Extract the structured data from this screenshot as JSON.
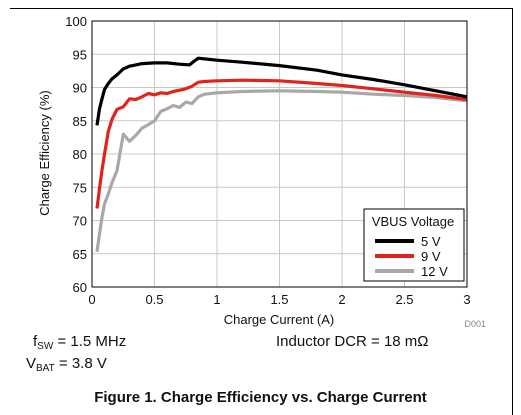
{
  "chart_data": {
    "type": "line",
    "title": "",
    "xlabel": "Charge Current (A)",
    "ylabel": "Charge Efficiency (%)",
    "xlim": [
      0,
      3
    ],
    "ylim": [
      60,
      100
    ],
    "x_ticks": [
      0,
      0.5,
      1,
      1.5,
      2,
      2.5,
      3
    ],
    "x_tick_labels": [
      "0",
      "0.5",
      "1",
      "1.5",
      "2",
      "2.5",
      "3"
    ],
    "y_ticks": [
      60,
      65,
      70,
      75,
      80,
      85,
      90,
      95,
      100
    ],
    "y_tick_labels": [
      "60",
      "65",
      "70",
      "75",
      "80",
      "85",
      "90",
      "95",
      "100"
    ],
    "grid": true,
    "legend_title": "VBUS Voltage",
    "legend_position": "lower-right",
    "figure_id": "D001",
    "series": [
      {
        "name": "5 V",
        "color": "#000000",
        "x": [
          0.04,
          0.06,
          0.08,
          0.1,
          0.13,
          0.16,
          0.2,
          0.25,
          0.3,
          0.35,
          0.4,
          0.5,
          0.6,
          0.7,
          0.78,
          0.82,
          0.85,
          0.9,
          1.0,
          1.2,
          1.5,
          1.8,
          2.0,
          2.25,
          2.5,
          2.75,
          3.0
        ],
        "y": [
          84.3,
          86.8,
          88.3,
          89.7,
          90.6,
          91.3,
          91.9,
          92.8,
          93.2,
          93.4,
          93.6,
          93.7,
          93.7,
          93.5,
          93.4,
          94.0,
          94.4,
          94.3,
          94.1,
          93.8,
          93.3,
          92.6,
          91.9,
          91.2,
          90.4,
          89.5,
          88.6
        ]
      },
      {
        "name": "9 V",
        "color": "#e2231a",
        "x": [
          0.04,
          0.06,
          0.08,
          0.1,
          0.13,
          0.16,
          0.2,
          0.25,
          0.3,
          0.35,
          0.4,
          0.45,
          0.5,
          0.55,
          0.6,
          0.65,
          0.7,
          0.75,
          0.8,
          0.85,
          0.9,
          1.0,
          1.2,
          1.5,
          1.8,
          2.0,
          2.25,
          2.5,
          2.75,
          3.0
        ],
        "y": [
          71.8,
          74.8,
          77.6,
          80.0,
          83.4,
          85.2,
          86.7,
          87.1,
          88.3,
          88.2,
          88.6,
          89.1,
          88.9,
          89.2,
          89.1,
          89.4,
          89.6,
          89.8,
          90.2,
          90.8,
          90.9,
          91.0,
          91.1,
          91.0,
          90.6,
          90.3,
          89.8,
          89.3,
          88.8,
          88.2
        ]
      },
      {
        "name": "12 V",
        "color": "#a8a8a8",
        "x": [
          0.04,
          0.06,
          0.08,
          0.1,
          0.13,
          0.16,
          0.2,
          0.25,
          0.3,
          0.35,
          0.4,
          0.45,
          0.5,
          0.55,
          0.6,
          0.65,
          0.7,
          0.75,
          0.8,
          0.85,
          0.9,
          1.0,
          1.2,
          1.5,
          1.8,
          2.0,
          2.25,
          2.5,
          2.75,
          3.0
        ],
        "y": [
          65.3,
          68.0,
          70.5,
          72.5,
          74.0,
          75.7,
          77.5,
          83.0,
          81.9,
          82.8,
          83.9,
          84.4,
          85.0,
          86.4,
          86.8,
          87.3,
          87.0,
          87.8,
          87.6,
          88.6,
          89.0,
          89.2,
          89.4,
          89.5,
          89.4,
          89.3,
          89.0,
          88.8,
          88.5,
          88.0
        ]
      }
    ]
  },
  "annotations": {
    "fsw_main": "f",
    "fsw_sub": "SW",
    "fsw_value": " = 1.5 MHz",
    "vbat_main": "V",
    "vbat_sub": "BAT",
    "vbat_value": " = 3.8 V",
    "dcr": "Inductor DCR = 18 mΩ"
  },
  "caption": "Figure 1. Charge Efficiency vs. Charge Current"
}
